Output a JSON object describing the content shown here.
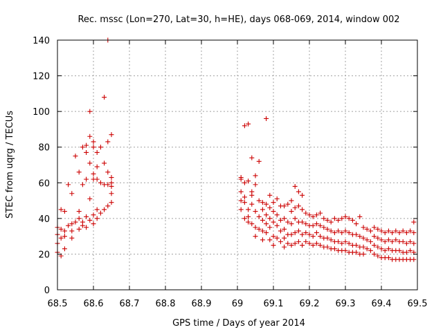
{
  "chart_data": {
    "type": "scatter",
    "title": "Rec. mssc (Lon=270, Lat=30, h=HE), days 068-069, 2014, window 002",
    "xlabel": "GPS time / Days of year 2014",
    "ylabel": "STEC from uqrg / TECUs",
    "xlim": [
      68.5,
      69.5
    ],
    "ylim": [
      0,
      140
    ],
    "xticks": [
      "68.5",
      "68.6",
      "68.7",
      "68.8",
      "68.9",
      "69",
      "69.1",
      "69.2",
      "69.3",
      "69.4",
      "69.5"
    ],
    "yticks": [
      "0",
      "20",
      "40",
      "60",
      "80",
      "100",
      "120",
      "140"
    ],
    "grid": true,
    "marker": "+",
    "color": "#cc0000",
    "series": [
      {
        "points": [
          [
            68.5,
            35
          ],
          [
            68.5,
            31
          ],
          [
            68.5,
            26
          ],
          [
            68.5,
            21
          ],
          [
            68.51,
            45
          ],
          [
            68.51,
            34
          ],
          [
            68.51,
            29
          ],
          [
            68.51,
            19
          ],
          [
            68.52,
            44
          ],
          [
            68.52,
            33
          ],
          [
            68.52,
            30
          ],
          [
            68.52,
            23
          ],
          [
            68.53,
            59
          ],
          [
            68.53,
            36
          ],
          [
            68.54,
            54
          ],
          [
            68.54,
            37
          ],
          [
            68.54,
            33
          ],
          [
            68.54,
            29
          ],
          [
            68.55,
            75
          ],
          [
            68.55,
            38
          ],
          [
            68.56,
            66
          ],
          [
            68.56,
            44
          ],
          [
            68.56,
            40
          ],
          [
            68.56,
            34
          ],
          [
            68.57,
            80
          ],
          [
            68.57,
            59
          ],
          [
            68.57,
            38
          ],
          [
            68.57,
            36
          ],
          [
            68.58,
            81
          ],
          [
            68.58,
            77
          ],
          [
            68.58,
            62
          ],
          [
            68.58,
            41
          ],
          [
            68.58,
            35
          ],
          [
            68.59,
            100
          ],
          [
            68.59,
            86
          ],
          [
            68.59,
            71
          ],
          [
            68.59,
            51
          ],
          [
            68.59,
            39
          ],
          [
            68.6,
            83
          ],
          [
            68.6,
            80
          ],
          [
            68.6,
            65
          ],
          [
            68.6,
            62
          ],
          [
            68.6,
            42
          ],
          [
            68.6,
            37
          ],
          [
            68.61,
            77
          ],
          [
            68.61,
            69
          ],
          [
            68.61,
            62
          ],
          [
            68.61,
            45
          ],
          [
            68.61,
            40
          ],
          [
            68.62,
            80
          ],
          [
            68.62,
            60
          ],
          [
            68.62,
            43
          ],
          [
            68.63,
            108
          ],
          [
            68.63,
            71
          ],
          [
            68.63,
            59
          ],
          [
            68.63,
            45
          ],
          [
            68.64,
            140
          ],
          [
            68.64,
            83
          ],
          [
            68.64,
            66
          ],
          [
            68.64,
            59
          ],
          [
            68.64,
            47
          ],
          [
            68.65,
            87
          ],
          [
            68.65,
            63
          ],
          [
            68.65,
            58
          ],
          [
            68.65,
            54
          ],
          [
            68.65,
            49
          ],
          [
            68.65,
            60
          ],
          [
            69.01,
            63
          ],
          [
            69.01,
            62
          ],
          [
            69.01,
            55
          ],
          [
            69.01,
            50
          ],
          [
            69.01,
            45
          ],
          [
            69.02,
            92
          ],
          [
            69.02,
            60
          ],
          [
            69.02,
            52
          ],
          [
            69.02,
            49
          ],
          [
            69.02,
            40
          ],
          [
            69.03,
            93
          ],
          [
            69.03,
            61
          ],
          [
            69.03,
            45
          ],
          [
            69.03,
            41
          ],
          [
            69.03,
            38
          ],
          [
            69.04,
            74
          ],
          [
            69.04,
            55
          ],
          [
            69.04,
            53
          ],
          [
            69.04,
            48
          ],
          [
            69.04,
            37
          ],
          [
            69.05,
            64
          ],
          [
            69.05,
            59
          ],
          [
            69.05,
            44
          ],
          [
            69.05,
            35
          ],
          [
            69.05,
            30
          ],
          [
            69.06,
            72
          ],
          [
            69.06,
            50
          ],
          [
            69.06,
            41
          ],
          [
            69.06,
            34
          ],
          [
            69.07,
            49
          ],
          [
            69.07,
            45
          ],
          [
            69.07,
            39
          ],
          [
            69.07,
            33
          ],
          [
            69.07,
            28
          ],
          [
            69.08,
            96
          ],
          [
            69.08,
            48
          ],
          [
            69.08,
            42
          ],
          [
            69.08,
            37
          ],
          [
            69.08,
            32
          ],
          [
            69.09,
            53
          ],
          [
            69.09,
            46
          ],
          [
            69.09,
            40
          ],
          [
            69.09,
            35
          ],
          [
            69.09,
            28
          ],
          [
            69.1,
            49
          ],
          [
            69.1,
            44
          ],
          [
            69.1,
            38
          ],
          [
            69.1,
            30
          ],
          [
            69.1,
            25
          ],
          [
            69.11,
            51
          ],
          [
            69.11,
            42
          ],
          [
            69.11,
            36
          ],
          [
            69.11,
            29
          ],
          [
            69.12,
            47
          ],
          [
            69.12,
            39
          ],
          [
            69.12,
            33
          ],
          [
            69.12,
            27
          ],
          [
            69.13,
            47
          ],
          [
            69.13,
            40
          ],
          [
            69.13,
            34
          ],
          [
            69.13,
            29
          ],
          [
            69.13,
            24
          ],
          [
            69.14,
            48
          ],
          [
            69.14,
            38
          ],
          [
            69.14,
            31
          ],
          [
            69.14,
            26
          ],
          [
            69.15,
            50
          ],
          [
            69.15,
            44
          ],
          [
            69.15,
            37
          ],
          [
            69.15,
            31
          ],
          [
            69.15,
            25
          ],
          [
            69.16,
            58
          ],
          [
            69.16,
            46
          ],
          [
            69.16,
            40
          ],
          [
            69.16,
            32
          ],
          [
            69.16,
            26
          ],
          [
            69.17,
            55
          ],
          [
            69.17,
            47
          ],
          [
            69.17,
            38
          ],
          [
            69.17,
            33
          ],
          [
            69.17,
            27
          ],
          [
            69.18,
            53
          ],
          [
            69.18,
            45
          ],
          [
            69.18,
            38
          ],
          [
            69.18,
            31
          ],
          [
            69.18,
            25
          ],
          [
            69.19,
            43
          ],
          [
            69.19,
            37
          ],
          [
            69.19,
            32
          ],
          [
            69.19,
            27
          ],
          [
            69.2,
            42
          ],
          [
            69.2,
            36
          ],
          [
            69.2,
            31
          ],
          [
            69.2,
            26
          ],
          [
            69.21,
            41
          ],
          [
            69.21,
            36
          ],
          [
            69.21,
            30
          ],
          [
            69.21,
            25
          ],
          [
            69.22,
            42
          ],
          [
            69.22,
            37
          ],
          [
            69.22,
            32
          ],
          [
            69.22,
            26
          ],
          [
            69.23,
            43
          ],
          [
            69.23,
            36
          ],
          [
            69.23,
            30
          ],
          [
            69.23,
            25
          ],
          [
            69.24,
            40
          ],
          [
            69.24,
            35
          ],
          [
            69.24,
            29
          ],
          [
            69.24,
            24
          ],
          [
            69.25,
            39
          ],
          [
            69.25,
            34
          ],
          [
            69.25,
            29
          ],
          [
            69.25,
            24
          ],
          [
            69.26,
            38
          ],
          [
            69.26,
            33
          ],
          [
            69.26,
            28
          ],
          [
            69.26,
            23
          ],
          [
            69.27,
            40
          ],
          [
            69.27,
            32
          ],
          [
            69.27,
            27
          ],
          [
            69.27,
            23
          ],
          [
            69.28,
            39
          ],
          [
            69.28,
            33
          ],
          [
            69.28,
            27
          ],
          [
            69.28,
            22
          ],
          [
            69.29,
            40
          ],
          [
            69.29,
            32
          ],
          [
            69.29,
            26
          ],
          [
            69.29,
            22
          ],
          [
            69.3,
            41
          ],
          [
            69.3,
            33
          ],
          [
            69.3,
            27
          ],
          [
            69.3,
            22
          ],
          [
            69.31,
            40
          ],
          [
            69.31,
            32
          ],
          [
            69.31,
            26
          ],
          [
            69.31,
            21
          ],
          [
            69.32,
            39
          ],
          [
            69.32,
            31
          ],
          [
            69.32,
            25
          ],
          [
            69.32,
            21
          ],
          [
            69.33,
            37
          ],
          [
            69.33,
            31
          ],
          [
            69.33,
            25
          ],
          [
            69.33,
            21
          ],
          [
            69.34,
            41
          ],
          [
            69.34,
            30
          ],
          [
            69.34,
            24
          ],
          [
            69.34,
            20
          ],
          [
            69.35,
            35
          ],
          [
            69.35,
            29
          ],
          [
            69.35,
            24
          ],
          [
            69.35,
            20
          ],
          [
            69.36,
            34
          ],
          [
            69.36,
            28
          ],
          [
            69.36,
            23
          ],
          [
            69.37,
            33
          ],
          [
            69.37,
            27
          ],
          [
            69.37,
            22
          ],
          [
            69.38,
            35
          ],
          [
            69.38,
            30
          ],
          [
            69.38,
            25
          ],
          [
            69.38,
            20
          ],
          [
            69.39,
            34
          ],
          [
            69.39,
            29
          ],
          [
            69.39,
            24
          ],
          [
            69.39,
            19
          ],
          [
            69.4,
            33
          ],
          [
            69.4,
            28
          ],
          [
            69.4,
            23
          ],
          [
            69.4,
            18
          ],
          [
            69.41,
            32
          ],
          [
            69.41,
            27
          ],
          [
            69.41,
            22
          ],
          [
            69.41,
            18
          ],
          [
            69.42,
            33
          ],
          [
            69.42,
            28
          ],
          [
            69.42,
            23
          ],
          [
            69.42,
            18
          ],
          [
            69.43,
            32
          ],
          [
            69.43,
            27
          ],
          [
            69.43,
            22
          ],
          [
            69.43,
            17
          ],
          [
            69.44,
            33
          ],
          [
            69.44,
            28
          ],
          [
            69.44,
            22
          ],
          [
            69.44,
            17
          ],
          [
            69.45,
            32
          ],
          [
            69.45,
            27
          ],
          [
            69.45,
            22
          ],
          [
            69.45,
            17
          ],
          [
            69.46,
            33
          ],
          [
            69.46,
            27
          ],
          [
            69.46,
            21
          ],
          [
            69.46,
            17
          ],
          [
            69.47,
            32
          ],
          [
            69.47,
            26
          ],
          [
            69.47,
            21
          ],
          [
            69.47,
            17
          ],
          [
            69.48,
            33
          ],
          [
            69.48,
            27
          ],
          [
            69.48,
            22
          ],
          [
            69.48,
            17
          ],
          [
            69.49,
            38
          ],
          [
            69.49,
            32
          ],
          [
            69.49,
            26
          ],
          [
            69.49,
            21
          ],
          [
            69.49,
            17
          ]
        ]
      }
    ]
  }
}
